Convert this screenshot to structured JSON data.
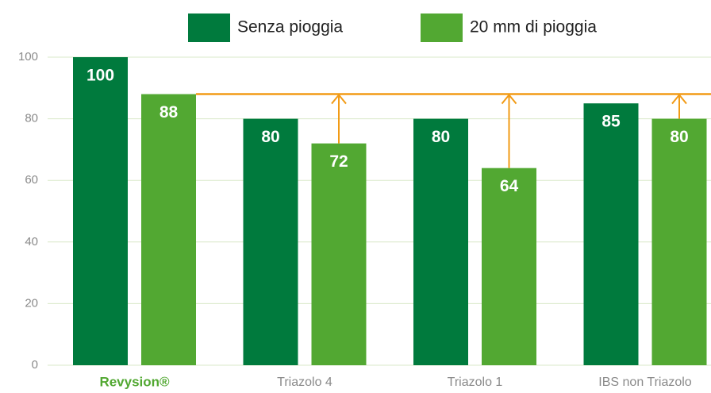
{
  "chart_data": {
    "type": "bar",
    "categories": [
      "Revysion®",
      "Triazolo 4",
      "Triazolo 1",
      "IBS non Triazolo"
    ],
    "series": [
      {
        "name": "Senza pioggia",
        "color": "#007a3d",
        "values": [
          100,
          80,
          80,
          85
        ]
      },
      {
        "name": "20 mm di pioggia",
        "color": "#52a832",
        "values": [
          88,
          72,
          64,
          80
        ]
      }
    ],
    "ylim": [
      0,
      100
    ],
    "yticks": [
      0,
      20,
      40,
      60,
      80,
      100
    ],
    "grid": true,
    "reference_color": "#f29b16"
  }
}
